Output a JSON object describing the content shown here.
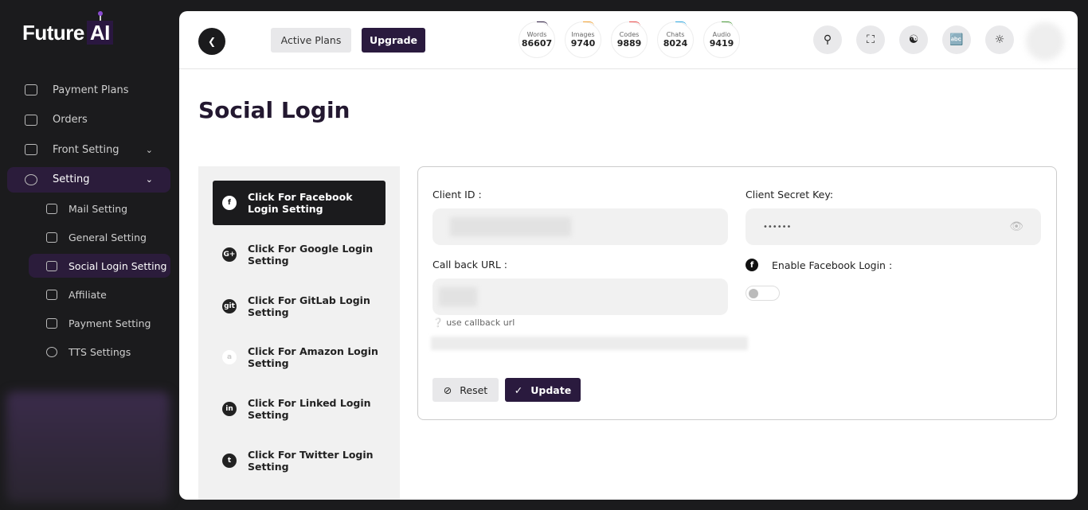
{
  "brand": {
    "name": "Future",
    "ai": "AI"
  },
  "sidebar": {
    "items": [
      {
        "label": "Payment Plans"
      },
      {
        "label": "Orders"
      },
      {
        "label": "Front Setting"
      },
      {
        "label": "Setting"
      }
    ],
    "sub_items": [
      {
        "label": "Mail Setting"
      },
      {
        "label": "General Setting"
      },
      {
        "label": "Social Login Setting"
      },
      {
        "label": "Affiliate"
      },
      {
        "label": "Payment Setting"
      },
      {
        "label": "TTS Settings"
      }
    ]
  },
  "topbar": {
    "active_plans": "Active Plans",
    "upgrade": "Upgrade",
    "stats": [
      {
        "label": "Words",
        "value": "86607",
        "color": "#2a1a3e"
      },
      {
        "label": "Images",
        "value": "9740",
        "color": "#f0a030"
      },
      {
        "label": "Codes",
        "value": "9889",
        "color": "#e84a4a"
      },
      {
        "label": "Chats",
        "value": "8024",
        "color": "#30a8e0"
      },
      {
        "label": "Audio",
        "value": "9419",
        "color": "#4a9a3a"
      }
    ]
  },
  "page": {
    "title": "Social Login"
  },
  "options": [
    {
      "label": "Click For Facebook Login Setting",
      "icon": "f"
    },
    {
      "label": "Click For Google Login Setting",
      "icon": "G+"
    },
    {
      "label": "Click For GitLab Login Setting",
      "icon": "git"
    },
    {
      "label": "Click For Amazon Login Setting",
      "icon": "a"
    },
    {
      "label": "Click For Linked Login Setting",
      "icon": "in"
    },
    {
      "label": "Click For Twitter Login Setting",
      "icon": "t"
    }
  ],
  "form": {
    "client_id_label": "Client ID :",
    "secret_label": "Client Secret Key:",
    "secret_value": "••••••",
    "callback_label": "Call back URL :",
    "help": "use callback url",
    "enable_label": "Enable Facebook Login :",
    "reset": "Reset",
    "update": "Update"
  }
}
